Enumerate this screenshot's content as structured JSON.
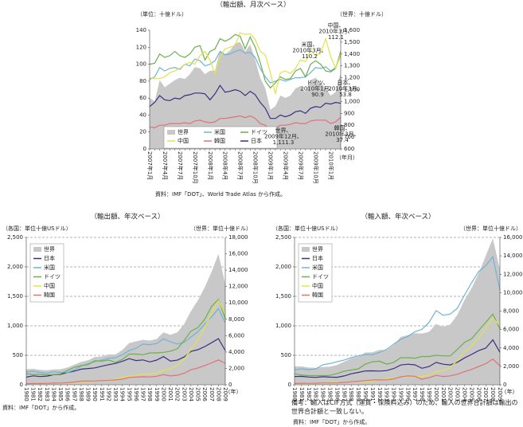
{
  "chart_data": [
    {
      "type": "line",
      "title": "（輸出額、月次ベース）",
      "y_label": "（単位：十億ドル）",
      "y2_label": "（世界：十億ドル）",
      "x_label": "（年月）",
      "categories": [
        "2007年1月",
        null,
        null,
        "2007年4月",
        null,
        null,
        "2007年7月",
        null,
        null,
        "2007年10月",
        null,
        null,
        "2008年1月",
        null,
        null,
        "2008年4月",
        null,
        null,
        "2008年7月",
        null,
        null,
        "2008年10月",
        null,
        null,
        "2009年1月",
        null,
        null,
        "2009年4月",
        null,
        null,
        "2009年7月",
        null,
        null,
        "2009年10月",
        null,
        null,
        "2010年1月",
        null,
        null
      ],
      "ylim": [
        0,
        140
      ],
      "yticks": [
        0,
        20,
        40,
        60,
        80,
        100,
        120,
        140
      ],
      "y2lim": [
        600,
        1600
      ],
      "y2ticks": [
        600,
        700,
        800,
        900,
        {
          "value": 1000,
          "label": "1,000"
        },
        {
          "value": 1100,
          "label": "1,100"
        },
        {
          "value": 1200,
          "label": "1,200"
        },
        {
          "value": 1300,
          "label": "1,300"
        },
        {
          "value": 1400,
          "label": "1,400"
        },
        {
          "value": 1500,
          "label": "1,500"
        },
        {
          "value": 1600,
          "label": "1,600"
        }
      ],
      "grid": false,
      "legend": "lower left",
      "series": [
        {
          "name": "世界",
          "color": "#c8c8c8",
          "axis": "y2",
          "values": [
            1030,
            1000,
            1180,
            1120,
            1150,
            1180,
            1200,
            1190,
            1230,
            1290,
            1280,
            1230,
            1260,
            1260,
            1430,
            1400,
            1430,
            1490,
            1500,
            1420,
            1480,
            1350,
            1200,
            1110,
            930,
            960,
            1050,
            1030,
            1050,
            1110,
            1130,
            1080,
            1180,
            1200,
            1160,
            1111.3,
            1050,
            1080,
            1240
          ]
        },
        {
          "name": "米国",
          "color": "#6fb3d9",
          "values": [
            82,
            85,
            96,
            92,
            95,
            96,
            94,
            100,
            98,
            106,
            104,
            98,
            100,
            104,
            115,
            111,
            112,
            115,
            117,
            113,
            114,
            108,
            95,
            85,
            78,
            80,
            82,
            80,
            82,
            84,
            84,
            85,
            90,
            96,
            95,
            97,
            92,
            96,
            110.2
          ]
        },
        {
          "name": "ドイツ",
          "color": "#6ab04c",
          "values": [
            100,
            101,
            112,
            108,
            110,
            115,
            110,
            108,
            112,
            120,
            122,
            105,
            115,
            118,
            130,
            127,
            130,
            135,
            133,
            118,
            132,
            120,
            102,
            80,
            72,
            78,
            85,
            82,
            83,
            92,
            95,
            85,
            100,
            104,
            100,
            92,
            90.9,
            95,
            115
          ]
        },
        {
          "name": "中国",
          "color": "#e2e24a",
          "values": [
            84,
            83,
            83,
            85,
            90,
            92,
            95,
            100,
            102,
            100,
            110,
            115,
            105,
            88,
            108,
            118,
            120,
            122,
            137,
            135,
            136,
            129,
            115,
            111,
            90,
            65,
            90,
            92,
            89,
            95,
            105,
            103,
            116,
            110,
            113,
            130,
            109,
            95,
            112.1
          ]
        },
        {
          "name": "韓国",
          "color": "#e0707a",
          "values": [
            26,
            25,
            28,
            28,
            30,
            30,
            30,
            31,
            30,
            33,
            34,
            32,
            31,
            32,
            36,
            36,
            37,
            38,
            39,
            37,
            39,
            36,
            30,
            28,
            21,
            25,
            28,
            28,
            29,
            31,
            30,
            30,
            33,
            34,
            34,
            34,
            30,
            32,
            37.4
          ]
        },
        {
          "name": "日本",
          "color": "#3b2f80",
          "values": [
            50,
            55,
            63,
            58,
            57,
            60,
            59,
            63,
            64,
            66,
            66,
            65,
            58,
            65,
            75,
            67,
            68,
            70,
            68,
            63,
            68,
            64,
            55,
            48,
            36,
            36,
            40,
            38,
            40,
            44,
            45,
            42,
            48,
            50,
            49,
            54,
            53,
            55,
            53.8
          ]
        }
      ],
      "annotations": [
        "中国、2010年3月、112.1",
        "米国、2010年3月、110.2",
        "ドイツ、2010年1月、90.9",
        "日本、2010年3月、53.8",
        "世界、2009年12月、1,111.3",
        "韓国、2010年3月、37.4"
      ],
      "source": "資料：IMF「DOT」、World Trade Atlas から作成。"
    },
    {
      "type": "line",
      "title": "（輸出額、年次ベース）",
      "y_label": "（各国：単位十億USドル）",
      "y2_label": "（世界：単位十億ドル）",
      "x_label": "（年）",
      "categories": [
        "1980",
        "1981",
        "1982",
        "1983",
        "1984",
        "1985",
        "1986",
        "1987",
        "1988",
        "1989",
        "1990",
        "1991",
        "1992",
        "1993",
        "1994",
        "1995",
        "1996",
        "1997",
        "1998",
        "1999",
        "2000",
        "2001",
        "2002",
        "2003",
        "2004",
        "2005",
        "2006",
        "2007",
        "2008",
        "2009"
      ],
      "ylim": [
        0,
        2500
      ],
      "yticks": [
        0,
        500,
        {
          "value": 1000,
          "label": "1,000"
        },
        {
          "value": 1500,
          "label": "1,500"
        },
        {
          "value": 2000,
          "label": "2,000"
        },
        {
          "value": 2500,
          "label": "2,500"
        }
      ],
      "y2lim": [
        0,
        18000
      ],
      "y2ticks": [
        0,
        {
          "value": 2000,
          "label": "2,000"
        },
        {
          "value": 4000,
          "label": "4,000"
        },
        {
          "value": 6000,
          "label": "6,000"
        },
        {
          "value": 8000,
          "label": "8,000"
        },
        {
          "value": 10000,
          "label": "10,000"
        },
        {
          "value": 12000,
          "label": "12,000"
        },
        {
          "value": 14000,
          "label": "14,000"
        },
        {
          "value": 16000,
          "label": "16,000"
        },
        {
          "value": 18000,
          "label": "18,000"
        }
      ],
      "grid": true,
      "legend": "upper left",
      "series": [
        {
          "name": "世界",
          "color": "#c8c8c8",
          "axis": "y2",
          "values": [
            1900,
            1950,
            1830,
            1780,
            1880,
            1900,
            2100,
            2450,
            2800,
            3000,
            3400,
            3450,
            3700,
            3700,
            4250,
            5100,
            5300,
            5500,
            5400,
            5600,
            6400,
            6100,
            6400,
            7400,
            9000,
            10300,
            11900,
            13800,
            16000,
            12300
          ]
        },
        {
          "name": "日本",
          "color": "#3b2f80",
          "values": [
            130,
            152,
            139,
            147,
            170,
            177,
            210,
            231,
            265,
            275,
            287,
            315,
            340,
            362,
            397,
            443,
            411,
            421,
            388,
            419,
            479,
            403,
            417,
            472,
            566,
            595,
            647,
            714,
            782,
            581
          ]
        },
        {
          "name": "米国",
          "color": "#6fb3d9",
          "values": [
            220,
            230,
            210,
            200,
            220,
            210,
            210,
            250,
            320,
            360,
            390,
            420,
            450,
            460,
            510,
            580,
            620,
            690,
            680,
            700,
            780,
            730,
            690,
            720,
            810,
            900,
            1030,
            1150,
            1290,
            1050
          ]
        },
        {
          "name": "ドイツ",
          "color": "#6ab04c",
          "values": [
            190,
            175,
            175,
            170,
            170,
            185,
            245,
            295,
            325,
            340,
            410,
            400,
            420,
            380,
            430,
            520,
            520,
            510,
            540,
            540,
            550,
            570,
            610,
            750,
            910,
            970,
            1110,
            1330,
            1450,
            1120
          ]
        },
        {
          "name": "中国",
          "color": "#e2e24a",
          "values": [
            18,
            22,
            22,
            22,
            26,
            27,
            31,
            39,
            47,
            52,
            62,
            71,
            85,
            92,
            121,
            149,
            151,
            183,
            184,
            195,
            249,
            266,
            326,
            438,
            593,
            762,
            969,
            1220,
            1430,
            1200
          ]
        },
        {
          "name": "韓国",
          "color": "#e0707a",
          "values": [
            17,
            21,
            22,
            24,
            29,
            30,
            35,
            47,
            61,
            62,
            65,
            72,
            77,
            82,
            96,
            125,
            130,
            136,
            132,
            144,
            172,
            150,
            162,
            194,
            254,
            284,
            326,
            372,
            422,
            364
          ]
        }
      ],
      "source": "資料：IMF「DOT」から作成。"
    },
    {
      "type": "line",
      "title": "（輸入額、年次ベース）",
      "y_label": "（各国：単位十億USドル）",
      "y2_label": "（世界：単位十億ドル）",
      "x_label": "（年）",
      "categories": [
        "1980",
        "1981",
        "1982",
        "1983",
        "1984",
        "1985",
        "1986",
        "1987",
        "1988",
        "1989",
        "1990",
        "1991",
        "1992",
        "1993",
        "1994",
        "1995",
        "1996",
        "1997",
        "1998",
        "1999",
        "2000",
        "2001",
        "2002",
        "2003",
        "2004",
        "2005",
        "2006",
        "2007",
        "2008",
        "2009"
      ],
      "ylim": [
        0,
        2500
      ],
      "yticks": [
        0,
        500,
        {
          "value": 1000,
          "label": "1,000"
        },
        {
          "value": 1500,
          "label": "1,500"
        },
        {
          "value": 2000,
          "label": "2,000"
        },
        {
          "value": 2500,
          "label": "2,500"
        }
      ],
      "y2lim": [
        0,
        16000
      ],
      "y2ticks": [
        0,
        {
          "value": 2000,
          "label": "2,000"
        },
        {
          "value": 4000,
          "label": "4,000"
        },
        {
          "value": 6000,
          "label": "6,000"
        },
        {
          "value": 8000,
          "label": "8,000"
        },
        {
          "value": 10000,
          "label": "10,000"
        },
        {
          "value": 12000,
          "label": "12,000"
        },
        {
          "value": 14000,
          "label": "14,000"
        },
        {
          "value": 16000,
          "label": "16,000"
        }
      ],
      "grid": true,
      "legend": "upper left",
      "series": [
        {
          "name": "世界",
          "color": "#c8c8c8",
          "axis": "y2",
          "values": [
            2000,
            1990,
            1870,
            1830,
            1930,
            1970,
            2150,
            2500,
            2850,
            3050,
            3500,
            3530,
            3800,
            3750,
            4300,
            5200,
            5400,
            5600,
            5550,
            5750,
            6600,
            6300,
            6550,
            7600,
            9200,
            10500,
            12100,
            14000,
            15900,
            12500
          ]
        },
        {
          "name": "日本",
          "color": "#3b2f80",
          "values": [
            140,
            143,
            131,
            126,
            136,
            130,
            127,
            150,
            187,
            210,
            235,
            236,
            233,
            241,
            275,
            335,
            349,
            338,
            280,
            310,
            380,
            349,
            337,
            383,
            455,
            515,
            580,
            622,
            762,
            551
          ]
        },
        {
          "name": "米国",
          "color": "#6fb3d9",
          "values": [
            250,
            270,
            255,
            270,
            340,
            360,
            390,
            420,
            460,
            490,
            515,
            510,
            550,
            600,
            690,
            770,
            820,
            900,
            940,
            1060,
            1260,
            1180,
            1200,
            1300,
            1520,
            1730,
            1920,
            2020,
            2170,
            1610
          ]
        },
        {
          "name": "ドイツ",
          "color": "#6ab04c",
          "values": [
            190,
            165,
            155,
            155,
            155,
            160,
            190,
            230,
            250,
            270,
            350,
            390,
            400,
            350,
            380,
            460,
            460,
            450,
            480,
            480,
            500,
            490,
            490,
            600,
            720,
            780,
            920,
            1060,
            1200,
            950
          ]
        },
        {
          "name": "中国",
          "color": "#e2e24a",
          "values": [
            20,
            22,
            19,
            22,
            27,
            42,
            43,
            43,
            55,
            59,
            53,
            64,
            81,
            104,
            116,
            132,
            139,
            142,
            140,
            166,
            225,
            244,
            295,
            413,
            561,
            660,
            792,
            956,
            1130,
            1010
          ]
        },
        {
          "name": "韓国",
          "color": "#e0707a",
          "values": [
            22,
            26,
            24,
            26,
            31,
            31,
            32,
            41,
            52,
            61,
            70,
            81,
            82,
            84,
            102,
            135,
            150,
            144,
            93,
            120,
            160,
            141,
            152,
            179,
            224,
            261,
            309,
            357,
            435,
            323
          ]
        }
      ],
      "note": "備考：輸入はCIF方式（運賃・保険料込み）のため、輸入の世界合計額は輸出の世界合計額と一致しない。",
      "source": "資料：IMF「DOT」から作成。"
    }
  ]
}
